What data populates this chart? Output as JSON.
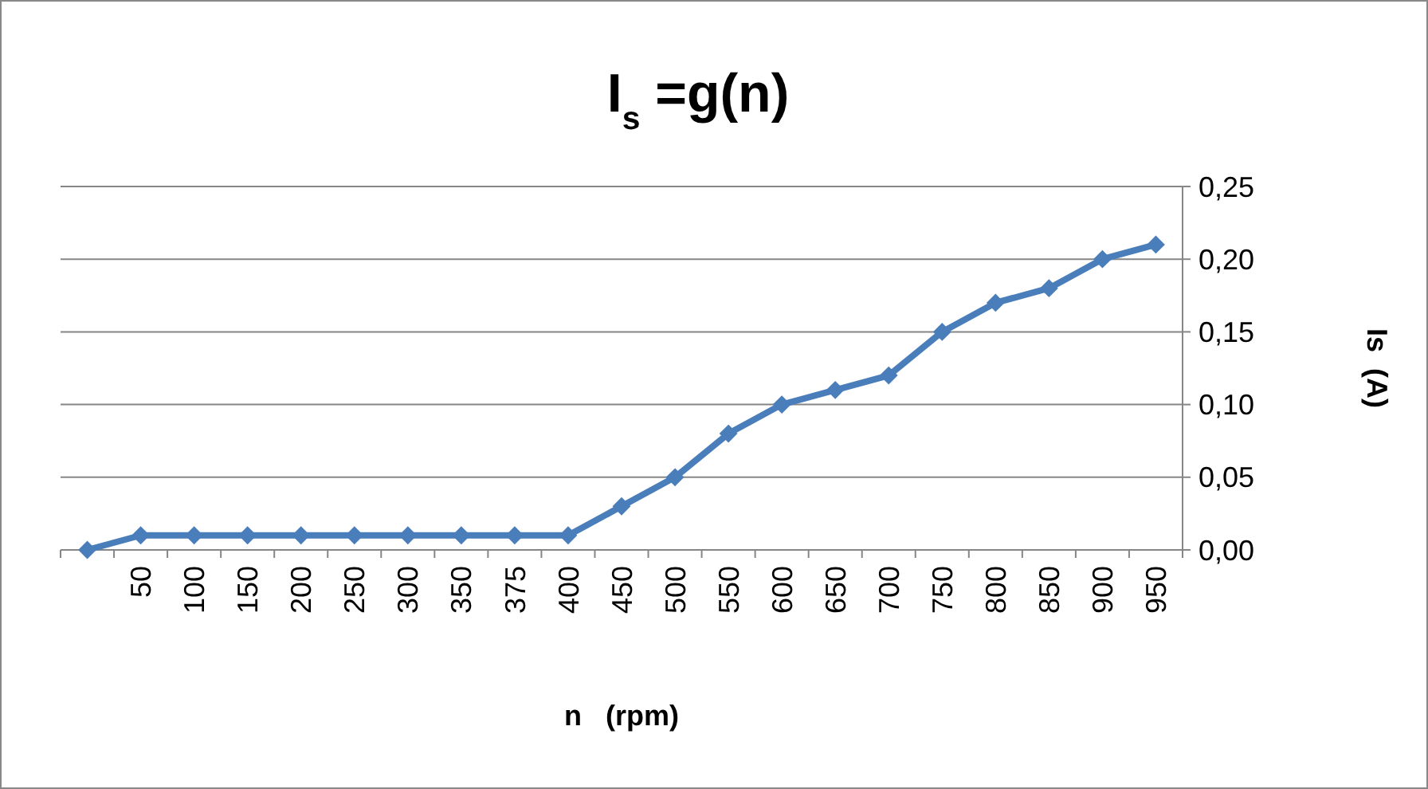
{
  "chart_data": {
    "type": "line",
    "title": "I$_{s}$ =g(n)",
    "xlabel": "n   (rpm)",
    "ylabel": "Is  (A)",
    "categories": [
      null,
      "50",
      "100",
      "150",
      "200",
      "250",
      "300",
      "350",
      "375",
      "400",
      "450",
      "500",
      "550",
      "600",
      "650",
      "700",
      "750",
      "800",
      "850",
      "900",
      "950"
    ],
    "series": [
      {
        "color": "#4a7ebb",
        "values": [
          0,
          0.01,
          0.01,
          0.01,
          0.01,
          0.01,
          0.01,
          0.01,
          0.01,
          0.01,
          0.03,
          0.05,
          0.08,
          0.1,
          0.11,
          0.12,
          0.15,
          0.17,
          0.18,
          0.2,
          0.21
        ]
      }
    ],
    "ylim": [
      0,
      0.25
    ],
    "yticks": [
      {
        "value": 0,
        "label": "0,00"
      },
      {
        "value": 0.05,
        "label": "0,05"
      },
      {
        "value": 0.1,
        "label": "0,10"
      },
      {
        "value": 0.15,
        "label": "0,15"
      },
      {
        "value": 0.2,
        "label": "0,20"
      },
      {
        "value": 0.25,
        "label": "0,25"
      }
    ],
    "grid": "y",
    "marker": "diamond",
    "line_style": "solid"
  }
}
